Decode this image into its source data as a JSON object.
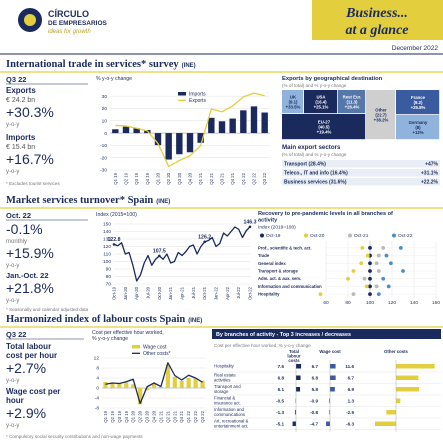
{
  "header": {
    "logo_name": "CÍRCULO",
    "logo_sub": "DE EMPRESARIOS",
    "tagline": "ideas for growth",
    "title_1": "Business...",
    "title_2": "at a glance",
    "date": "December 2022"
  },
  "sections": [
    {
      "title": "International trade in services* survey",
      "source": "(INE)",
      "period": "Q3 22",
      "kpis": [
        {
          "label": "Exports",
          "amount": "€ 24.2 bn",
          "change": "+30.3%",
          "unit": "y-o-y"
        },
        {
          "label": "Imports",
          "amount": "€ 15.4 bn",
          "change": "+16.7%",
          "unit": "y-o-y"
        }
      ],
      "note": "* Excludes tourist services"
    },
    {
      "title": "Market services turnover* Spain",
      "source": "(INE)",
      "period": "Oct. 22",
      "kpis": [
        {
          "change": "-0.1%",
          "unit": "monthly"
        },
        {
          "change": "+15.9%",
          "unit": "y-o-y"
        }
      ],
      "period_2": "Jan.-Oct. 22",
      "kpi_2": {
        "change": "+21.8%",
        "unit": "y-o-y"
      },
      "note": "* Seasonally and calendar adjusted data"
    },
    {
      "title": "Harmonized index of labour costs Spain",
      "source": "(INE)",
      "period": "Q3 22",
      "kpis": [
        {
          "label_lines": [
            "Total labour",
            "cost per hour"
          ],
          "change": "+2.7%",
          "unit": "y-o-y"
        },
        {
          "label_lines": [
            "Wage cost per",
            "hour"
          ],
          "change": "+2.9%",
          "unit": "y-o-y"
        }
      ],
      "note": "* Compulsory social security contributions and non-wage payments"
    }
  ],
  "geo": {
    "title": "Exports by geographical destination",
    "subtitle": "(% of total) and % y-o-y change",
    "tiles": [
      {
        "name": "UK",
        "share": "(9.1)",
        "change": "+33.5%"
      },
      {
        "name": "USA",
        "share": "(16.4)",
        "change": "+25.1%"
      },
      {
        "name": "Rest Eur.",
        "share": "(11.3)",
        "change": "+26.4%"
      },
      {
        "name": "Other",
        "share": "(22.7)",
        "change": "+38.2%"
      },
      {
        "name": "EU-27",
        "share": "(40.5)",
        "change": "+19.4%"
      },
      {
        "name": "France",
        "share": "(9.2)",
        "change": "+25.8%"
      },
      {
        "name": "Germany",
        "share": "(8)",
        "change": "+12%"
      }
    ]
  },
  "sectors": {
    "title": "Main export sectors",
    "subtitle": "(% of total) and % y-o-y change",
    "rows": [
      {
        "name": "Transport (28.4%)",
        "change": "+47%"
      },
      {
        "name": "Teleco., IT and info (16.4%)",
        "change": "+31.1%"
      },
      {
        "name": "Business services (31.6%)",
        "change": "+22.2%"
      }
    ]
  },
  "labour_table": {
    "title": "By branches of activity - Top 3 increases / decreases",
    "subtitle": "Cost per effective hour worked, % y-o-y change",
    "columns": [
      [
        "Total",
        "labour",
        "costs"
      ],
      [
        "Wage cost"
      ],
      [
        "Other costs"
      ]
    ],
    "rows": [
      {
        "label_lines": [
          "Hospitality"
        ],
        "values": [
          7.6,
          6.7,
          11.6
        ]
      },
      {
        "label_lines": [
          "Real estate",
          "activities"
        ],
        "values": [
          6.8,
          6.8,
          6.7
        ]
      },
      {
        "label_lines": [
          "Transport and",
          "storage"
        ],
        "values": [
          6.1,
          5.8,
          6.9
        ]
      },
      {
        "label_lines": [
          "Financial &",
          "insurance act."
        ],
        "values": [
          -0.5,
          -0.9,
          1.3
        ]
      },
      {
        "label_lines": [
          "Information and",
          "communications"
        ],
        "values": [
          -1.3,
          -0.8,
          -2.9
        ]
      },
      {
        "label_lines": [
          "Art, recreational &",
          "entertainment act."
        ],
        "values": [
          -5.1,
          -4.7,
          -6.3
        ]
      }
    ]
  },
  "chart_data": [
    {
      "type": "combo",
      "ylabel": [
        "% y-o-y change"
      ],
      "categories": [
        "Q1 19",
        "Q2 19",
        "Q3 19",
        "Q4 19",
        "Q1 20",
        "Q2 20",
        "Q3 20",
        "Q4 20",
        "Q1 21",
        "Q2 21",
        "Q3 21",
        "Q4 21",
        "Q1 22",
        "Q2 22",
        "Q3 22"
      ],
      "series": [
        {
          "name": "Imports",
          "color": "#1b2a5c",
          "mark": "bar",
          "values": [
            3.1,
            5.2,
            4.0,
            2.5,
            -9.8,
            -21.5,
            -17.2,
            -15.6,
            -7.9,
            12.4,
            9.6,
            11.8,
            18.5,
            21.7,
            16.7
          ]
        },
        {
          "name": "Exports",
          "color": "#e3cf3e",
          "mark": "line",
          "values": [
            6.2,
            5.8,
            3.9,
            1.8,
            -8.5,
            -27.1,
            -22.3,
            -18.4,
            -10.2,
            19.6,
            17.3,
            22.1,
            29.4,
            32.5,
            30.3
          ]
        }
      ],
      "ylim": [
        -30,
        35
      ],
      "yticks": [
        -30,
        -20,
        -10,
        0,
        10,
        20,
        30
      ],
      "grid": true,
      "legend": "inside-top"
    },
    {
      "type": "line",
      "ylabel": [
        "Index (2015=100)"
      ],
      "color": "#1b2a5c",
      "categories": [
        "Oct-19",
        null,
        null,
        "Jan-20",
        null,
        null,
        "Apr-20",
        null,
        null,
        "Jul-20",
        null,
        null,
        "Oct-20",
        null,
        null,
        "Jan-21",
        null,
        null,
        "Apr-21",
        null,
        null,
        "Jul-21",
        null,
        null,
        "Oct-21",
        null,
        null,
        "Jan-22",
        null,
        null,
        "Apr-22",
        null,
        null,
        "Jul-22",
        null,
        null,
        "Oct-22"
      ],
      "values": [
        122.8,
        121,
        125,
        110,
        112,
        95,
        74,
        82,
        98,
        108,
        95,
        103,
        107.5,
        103,
        110,
        98,
        100,
        112,
        108,
        113,
        120,
        122,
        110,
        120,
        126.2,
        128,
        132,
        120,
        124,
        138,
        134,
        140,
        146,
        143,
        132,
        141,
        146.3
      ],
      "value_labels": [
        "122.8",
        null,
        null,
        null,
        null,
        null,
        null,
        null,
        null,
        null,
        null,
        null,
        "107.5",
        null,
        null,
        null,
        null,
        null,
        null,
        null,
        null,
        null,
        null,
        null,
        "126.2",
        null,
        null,
        null,
        null,
        null,
        null,
        null,
        null,
        null,
        null,
        null,
        "146.3"
      ],
      "ylim": [
        70,
        150
      ],
      "yticks": [
        70,
        80,
        90,
        100,
        110,
        120,
        130,
        140,
        150
      ],
      "grid": true
    },
    {
      "type": "dot",
      "title": [
        "Recovery to pre-pandemic levels in all branches of",
        "activity"
      ],
      "subtitle": "Index (2019=100)",
      "categories": [
        "Prof., scientific & tech. act.",
        "Trade",
        "General index",
        "Transport & storage",
        "Adm. act. & aux. serv.",
        "Information and communication",
        "Hospitality"
      ],
      "series": [
        {
          "name": "Oct-19",
          "color": "#1b2a5c",
          "values": [
            100,
            100,
            100,
            100,
            100,
            100,
            100
          ]
        },
        {
          "name": "Oct-20",
          "color": "#e3cf3e",
          "values": [
            93,
            98,
            92,
            85,
            80,
            97,
            55
          ]
        },
        {
          "name": "Oct-21",
          "color": "#b9b9b9",
          "values": [
            112,
            108,
            106,
            108,
            95,
            106,
            85
          ]
        },
        {
          "name": "Oct-22",
          "color": "#4a90c8",
          "values": [
            128,
            115,
            119,
            130,
            112,
            117,
            108
          ]
        }
      ],
      "xlim": [
        60,
        160
      ],
      "xticks": [
        60,
        80,
        100,
        120,
        140,
        160
      ],
      "grid": true,
      "legend": "top"
    },
    {
      "type": "combo",
      "ylabel": [
        "Cost per effective hour worked,",
        "% y-o-y change"
      ],
      "categories": [
        "Q1 19",
        "Q2 19",
        "Q3 19",
        "Q4 19",
        "Q1 20",
        "Q2 20",
        "Q3 20",
        "Q4 20",
        "Q1 21",
        "Q2 21",
        "Q3 21",
        "Q4 21",
        "Q1 22",
        "Q2 22",
        "Q3 22"
      ],
      "series": [
        {
          "name": "Wage cost",
          "color": "#e3cf3e",
          "mark": "bar",
          "values": [
            2.4,
            2.1,
            1.9,
            2.2,
            1.5,
            -6.5,
            -0.9,
            1.6,
            0.4,
            9.3,
            4.5,
            2.8,
            4.0,
            3.8,
            2.9
          ]
        },
        {
          "name": "Other costs*",
          "color": "#1b2a5c",
          "mark": "line",
          "values": [
            1.5,
            2.0,
            1.8,
            2.5,
            3.5,
            -6.2,
            0.5,
            2.0,
            0.6,
            10.1,
            5.0,
            3.2,
            5.1,
            4.0,
            2.3
          ]
        }
      ],
      "ylim": [
        -8,
        12
      ],
      "yticks": [
        -8,
        -4,
        0,
        4,
        8,
        12
      ],
      "grid": true,
      "legend": "top"
    }
  ]
}
